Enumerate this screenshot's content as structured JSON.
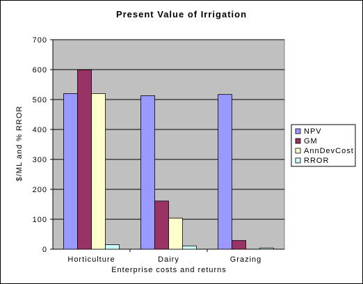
{
  "chart_data": {
    "type": "bar",
    "title": "Present Value of Irrigation",
    "xlabel": "Enterprise costs and returns",
    "ylabel": "$/ML and % RROR",
    "categories": [
      "Horticulture",
      "Dairy",
      "Grazing"
    ],
    "ylim": [
      0,
      700
    ],
    "yticks": [
      "0",
      "100",
      "200",
      "300",
      "400",
      "500",
      "600",
      "700"
    ],
    "grid": true,
    "legend_position": "right",
    "series": [
      {
        "name": "NPV",
        "values": [
          520,
          513,
          517
        ],
        "color": "#9999ff"
      },
      {
        "name": "GM",
        "values": [
          599,
          161,
          29
        ],
        "color": "#993366"
      },
      {
        "name": "AnnDevCost",
        "values": [
          520,
          104,
          0
        ],
        "color": "#ffffcc"
      },
      {
        "name": "RROR",
        "values": [
          15,
          11,
          4
        ],
        "color": "#ccffff"
      }
    ],
    "plot_background": "#c0c0c0"
  }
}
